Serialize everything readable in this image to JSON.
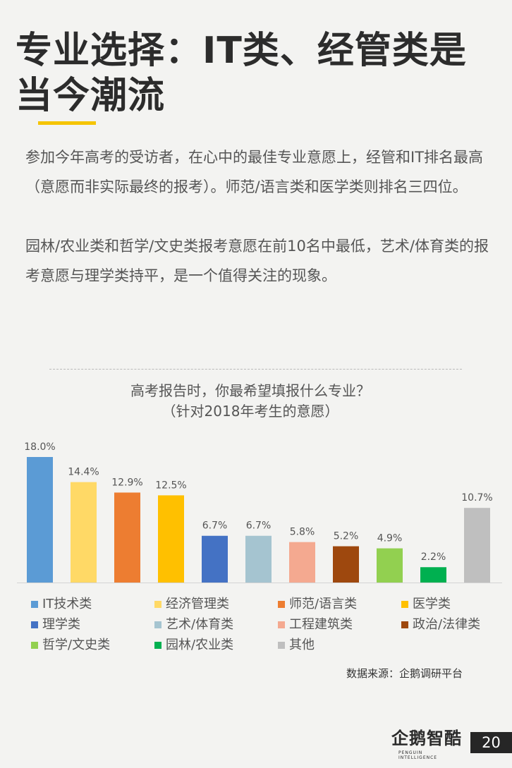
{
  "page": {
    "title": "专业选择：IT类、经管类是当今潮流",
    "intro_paragraphs": [
      "参加今年高考的受访者，在心中的最佳专业意愿上，经管和IT排名最高（意愿而非实际最终的报考）。师范/语言类和医学类则排名三四位。",
      "园林/农业类和哲学/文史类报考意愿在前10名中最低，艺术/体育类的报考意愿与理学类持平，是一个值得关注的现象。"
    ],
    "source": "数据来源：企鹅调研平台",
    "brand_name": "企鹅智酷",
    "brand_sub": "PENGUIN INTELLIGENCE",
    "page_number": "20"
  },
  "chart_data": {
    "type": "bar",
    "title": "高考报告时，你最希望填报什么专业？",
    "subtitle": "（针对2018年考生的意愿）",
    "categories": [
      "IT技术类",
      "经济管理类",
      "师范/语言类",
      "医学类",
      "理学类",
      "艺术/体育类",
      "工程建筑类",
      "政治/法律类",
      "哲学/文史类",
      "园林/农业类",
      "其他"
    ],
    "values": [
      18.0,
      14.4,
      12.9,
      12.5,
      6.7,
      6.7,
      5.8,
      5.2,
      4.9,
      2.2,
      10.7
    ],
    "value_labels": [
      "18.0%",
      "14.4%",
      "12.9%",
      "12.5%",
      "6.7%",
      "6.7%",
      "5.8%",
      "5.2%",
      "4.9%",
      "2.2%",
      "10.7%"
    ],
    "colors": [
      "#5b9bd5",
      "#ffd966",
      "#ed7d31",
      "#ffc000",
      "#4472c4",
      "#a5c4d0",
      "#f4a990",
      "#9e480e",
      "#92d050",
      "#00b050",
      "#bfbfbf"
    ],
    "ylim": [
      0,
      18.0
    ],
    "grid": false,
    "legend": "bottom"
  }
}
